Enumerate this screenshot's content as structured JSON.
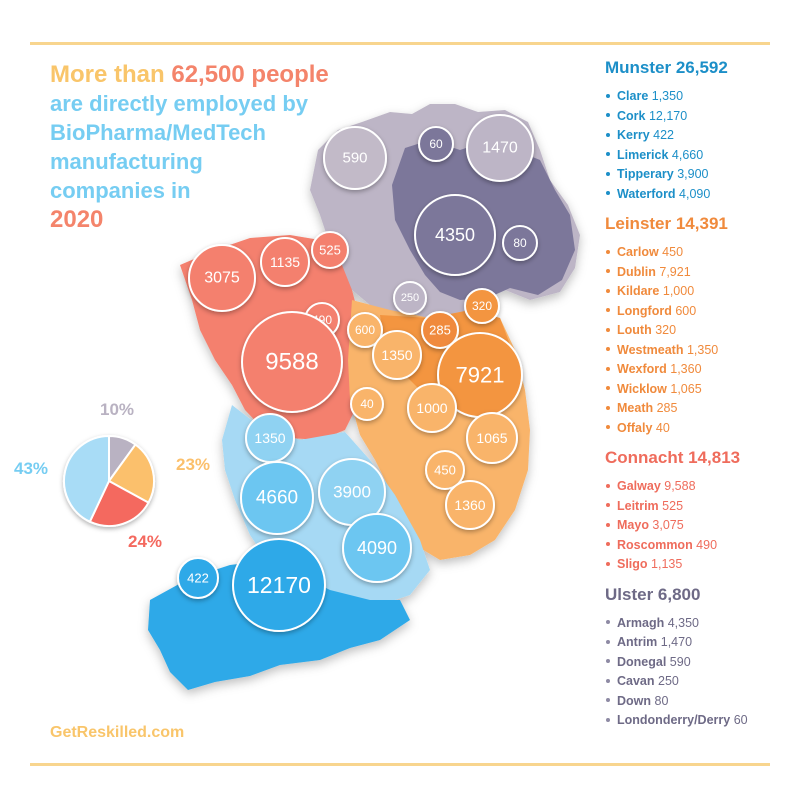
{
  "headline": {
    "line1_pre": "More than ",
    "line1_num": "62,500 people",
    "line2": "are directly employed by",
    "line3": "BioPharma/MedTech",
    "line4": "manufacturing",
    "line5": "companies in",
    "year": "2020"
  },
  "colors": {
    "munster": "#1c8fc8",
    "leinster": "#f08a3c",
    "connacht": "#ef6c5c",
    "ulster": "#6e6a86",
    "gold": "#f9c56a",
    "sky": "#76cdf2",
    "rule": "#f8d58e"
  },
  "map_bubbles": {
    "donegal": "590",
    "derry": "60",
    "antrim": "1470",
    "armagh": "4350",
    "down": "80",
    "cavan": "250",
    "louth": "320",
    "meath": "285",
    "mayo": "3075",
    "sligo": "1135",
    "leitrim": "525",
    "roscommon": "490",
    "longford": "600",
    "westmeath": "1350",
    "dublin": "7921",
    "galway": "9588",
    "offaly": "40",
    "kildare": "1000",
    "wicklow": "1065",
    "clare": "1350",
    "carlow": "450",
    "limerick": "4660",
    "tipperary": "3900",
    "wexford": "1360",
    "waterford": "4090",
    "kerry": "422",
    "cork": "12170"
  },
  "pie": {
    "labels": {
      "ulster": "10%",
      "leinster": "23%",
      "connacht": "24%",
      "munster": "43%"
    },
    "values": [
      {
        "province": "Ulster",
        "percent": 10,
        "color": "#b9b2c2"
      },
      {
        "province": "Leinster",
        "percent": 23,
        "color": "#fbc06c"
      },
      {
        "province": "Connacht",
        "percent": 24,
        "color": "#f4695f"
      },
      {
        "province": "Munster",
        "percent": 43,
        "color": "#a8dcf6"
      }
    ]
  },
  "legend": {
    "munster": {
      "title": "Munster 26,592",
      "counties": [
        {
          "name": "Clare",
          "value": "1,350"
        },
        {
          "name": "Cork",
          "value": "12,170"
        },
        {
          "name": "Kerry",
          "value": "422"
        },
        {
          "name": "Limerick",
          "value": "4,660"
        },
        {
          "name": "Tipperary",
          "value": "3,900"
        },
        {
          "name": "Waterford",
          "value": "4,090"
        }
      ]
    },
    "leinster": {
      "title": "Leinster 14,391",
      "counties": [
        {
          "name": "Carlow",
          "value": "450"
        },
        {
          "name": "Dublin",
          "value": "7,921"
        },
        {
          "name": "Kildare",
          "value": "1,000"
        },
        {
          "name": "Longford",
          "value": "600"
        },
        {
          "name": "Louth",
          "value": "320"
        },
        {
          "name": "Westmeath",
          "value": "1,350"
        },
        {
          "name": "Wexford",
          "value": "1,360"
        },
        {
          "name": "Wicklow",
          "value": "1,065"
        },
        {
          "name": "Meath",
          "value": "285"
        },
        {
          "name": "Offaly",
          "value": "40"
        }
      ]
    },
    "connacht": {
      "title": "Connacht 14,813",
      "counties": [
        {
          "name": "Galway",
          "value": "9,588"
        },
        {
          "name": "Leitrim",
          "value": "525"
        },
        {
          "name": "Mayo",
          "value": "3,075"
        },
        {
          "name": "Roscommon",
          "value": "490"
        },
        {
          "name": "Sligo",
          "value": "1,135"
        }
      ]
    },
    "ulster": {
      "title": "Ulster 6,800",
      "counties": [
        {
          "name": "Armagh",
          "value": "4,350"
        },
        {
          "name": "Antrim",
          "value": "1,470"
        },
        {
          "name": "Donegal",
          "value": "590"
        },
        {
          "name": "Cavan",
          "value": "250"
        },
        {
          "name": "Down",
          "value": "80"
        },
        {
          "name": "Londonderry/Derry",
          "value": "60"
        }
      ]
    }
  },
  "footer": {
    "website": "GetReskilled.com"
  }
}
